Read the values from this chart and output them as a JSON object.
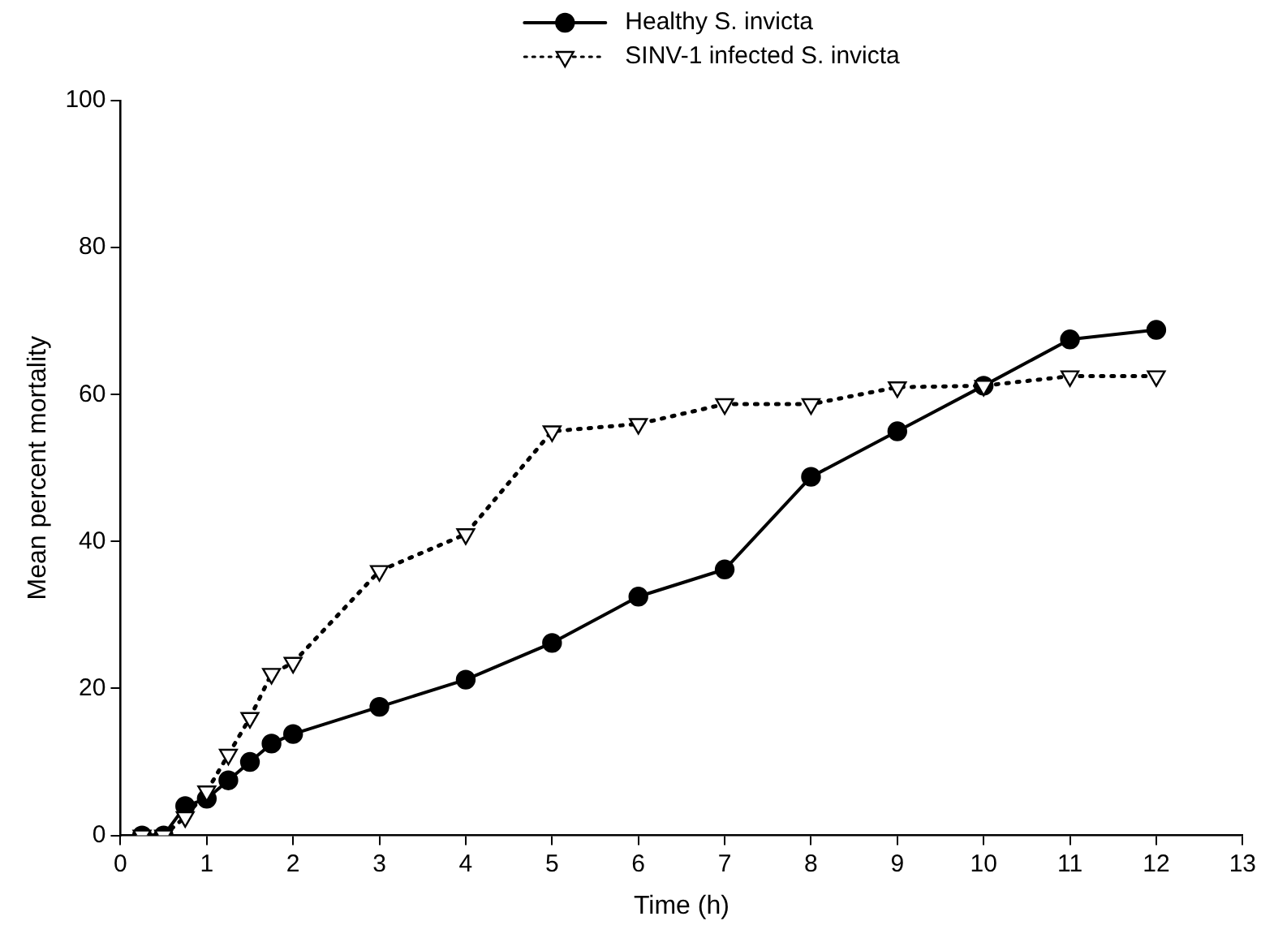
{
  "chart_data": {
    "type": "line",
    "xlabel": "Time (h)",
    "ylabel": "Mean percent mortality",
    "xlim": [
      0,
      13
    ],
    "xticks": [
      0,
      1,
      2,
      3,
      4,
      5,
      6,
      7,
      8,
      9,
      10,
      11,
      12,
      13
    ],
    "ylim": [
      0,
      100
    ],
    "yticks": [
      0,
      20,
      40,
      60,
      80,
      100
    ],
    "grid": false,
    "legend": "top right",
    "series": [
      {
        "name": "Healthy S. invicta",
        "color": "#000000",
        "marker": "circle",
        "line_style": "solid",
        "x": [
          0.25,
          0.5,
          0.75,
          1,
          1.25,
          1.5,
          1.75,
          2,
          3,
          4,
          5,
          6,
          7,
          8,
          9,
          10,
          11,
          12
        ],
        "values": [
          0,
          0,
          4,
          5,
          7.5,
          10,
          12.5,
          13.8,
          17.5,
          21.2,
          26.2,
          32.5,
          36.2,
          48.8,
          55,
          61.2,
          67.5,
          68.8
        ]
      },
      {
        "name": "SINV-1 infected S. invicta",
        "color": "#000000",
        "marker": "triangle",
        "line_style": "dotted",
        "x": [
          0.25,
          0.5,
          0.75,
          1,
          1.25,
          1.5,
          1.75,
          2,
          3,
          4,
          5,
          6,
          7,
          8,
          9,
          10,
          11,
          12
        ],
        "values": [
          0,
          0,
          2.5,
          6,
          11,
          16,
          22,
          23.5,
          36,
          41,
          55,
          56,
          58.7,
          58.7,
          61,
          61.2,
          62.5,
          62.5
        ]
      }
    ]
  }
}
